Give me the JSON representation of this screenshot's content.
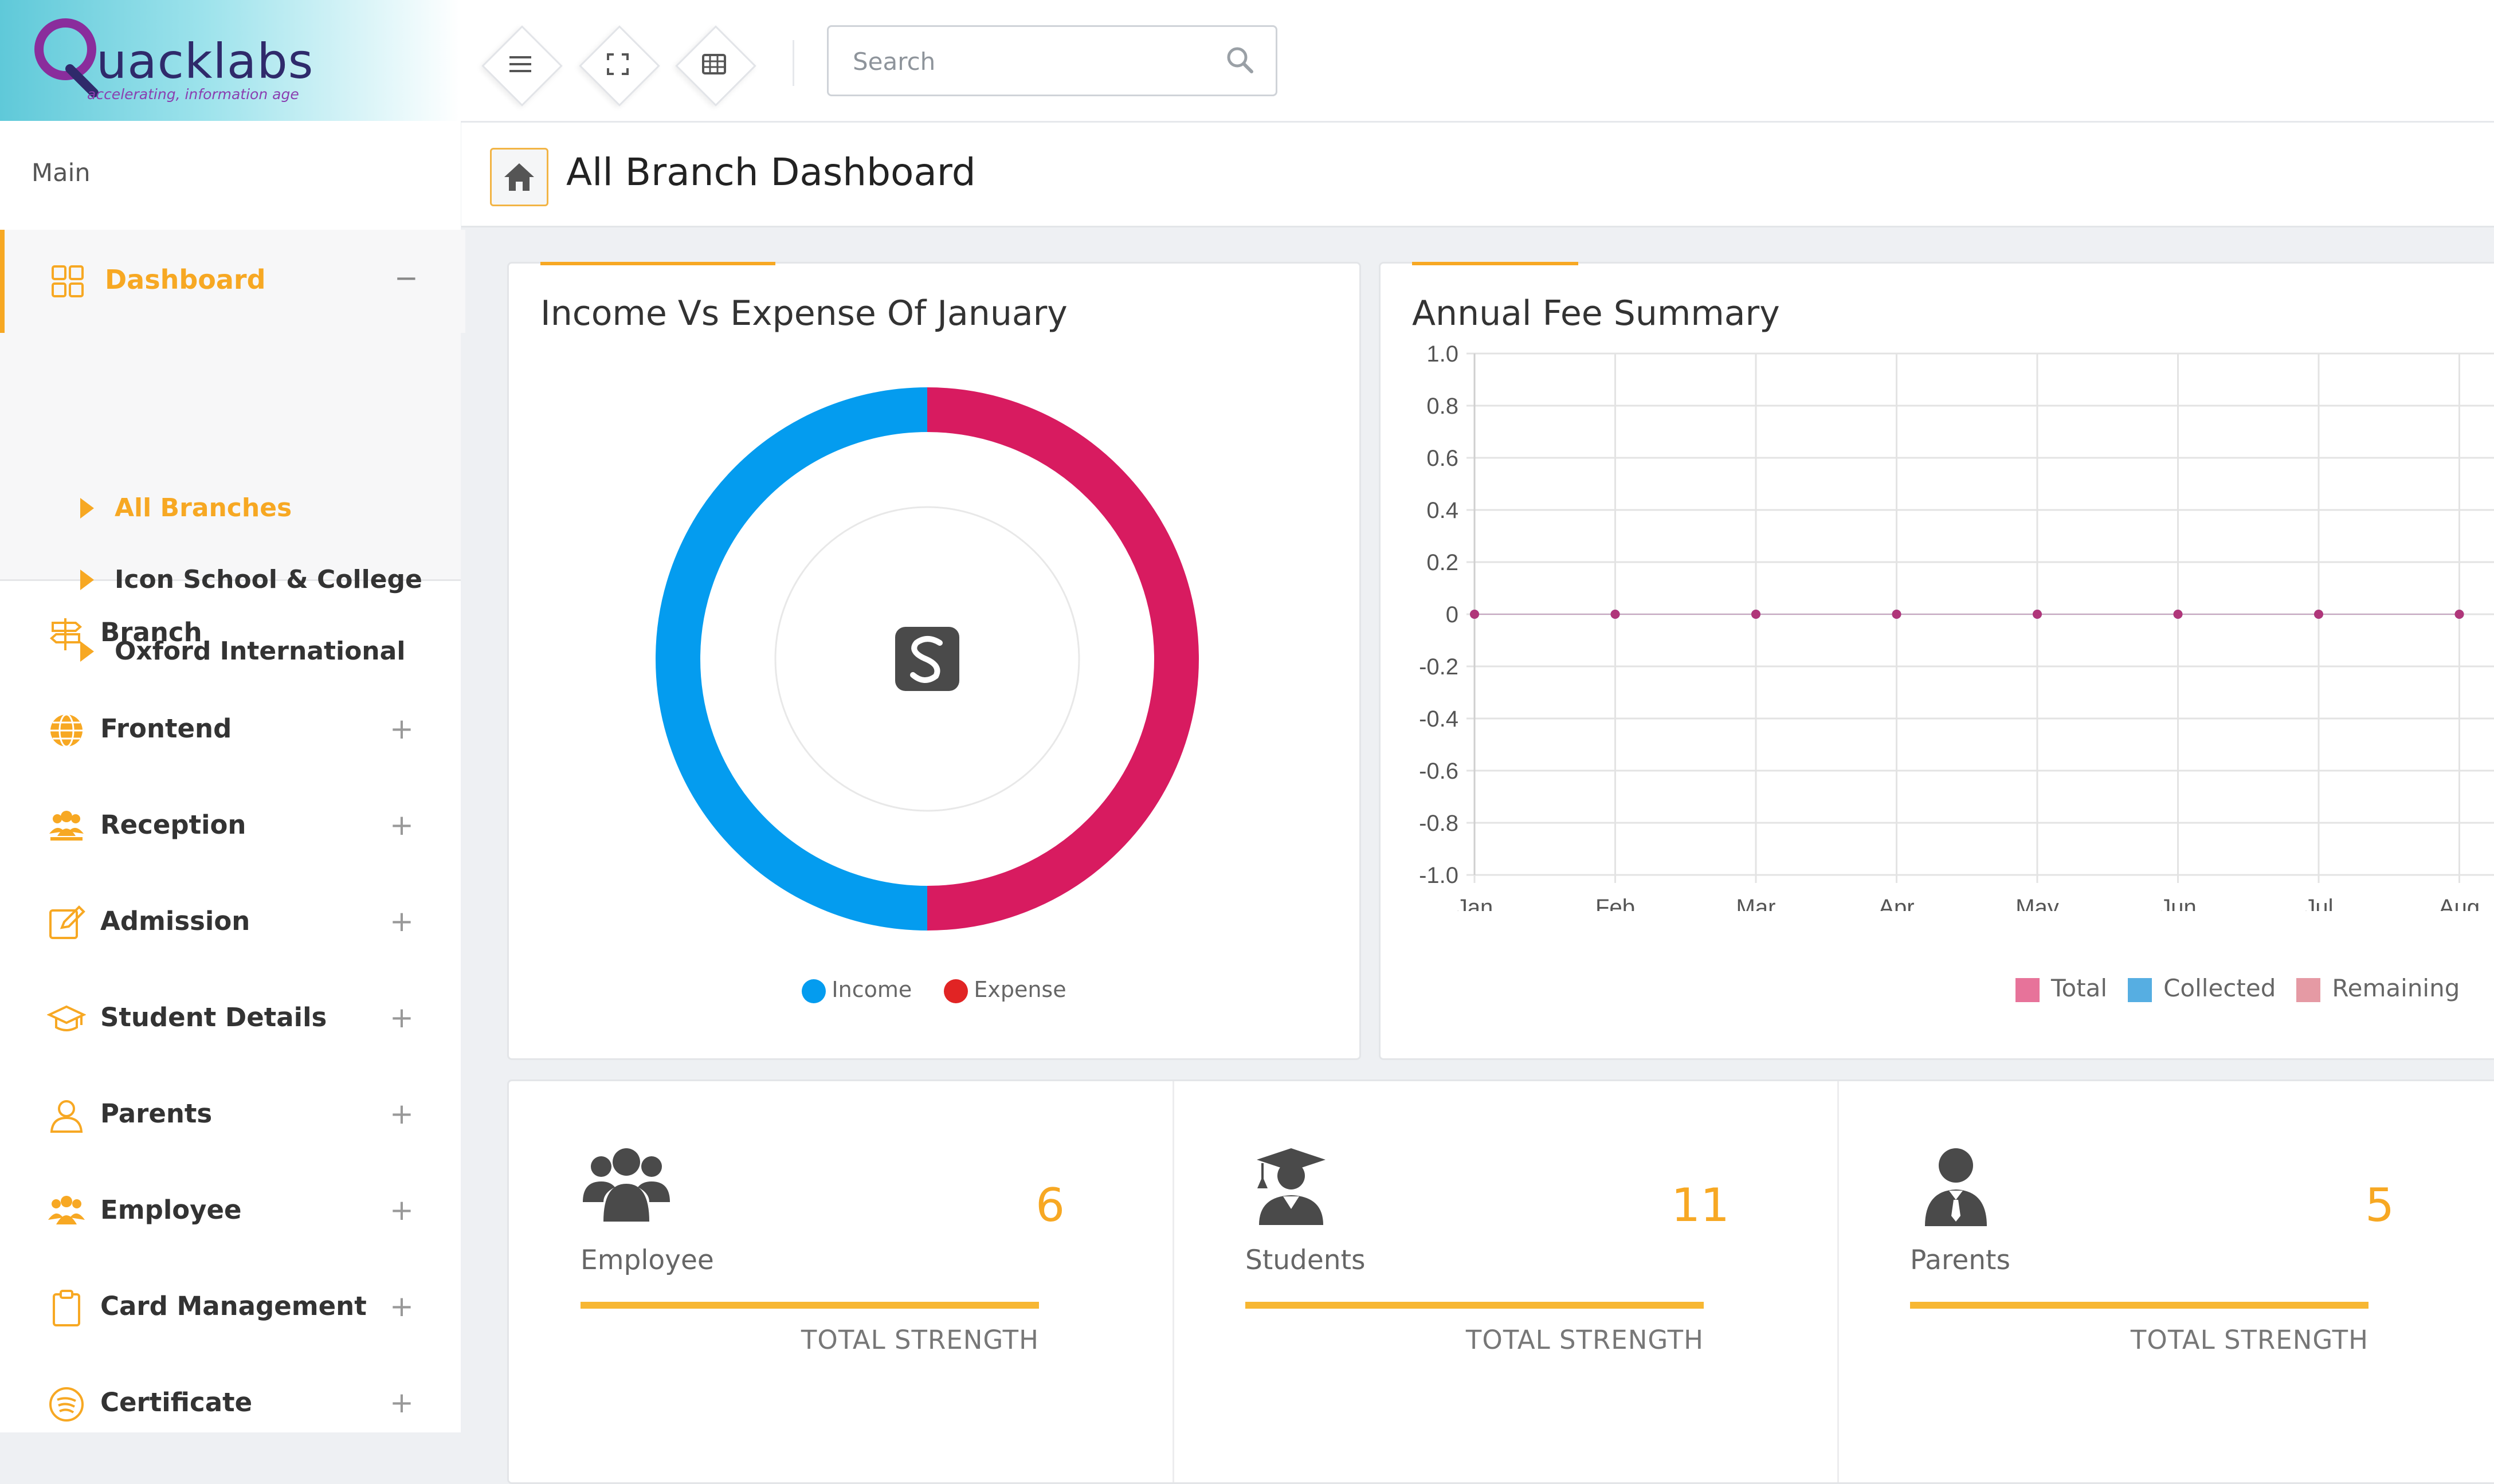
{
  "brand": {
    "name": "uacklabs",
    "tagline": "accelerating, information age"
  },
  "topbar": {
    "menu_icon": "menu-icon",
    "fullscreen_icon": "fullscreen-icon",
    "grid_icon": "grid-icon",
    "search": {
      "placeholder": "Search",
      "value": ""
    }
  },
  "sidebar": {
    "section_label": "Main",
    "dashboard": {
      "label": "Dashboard",
      "toggle": "−",
      "submenu": [
        "All Branches",
        "Icon School & College",
        "Oxford International"
      ]
    },
    "items": [
      {
        "label": "Branch",
        "icon": "branch-signpost-icon",
        "expand": ""
      },
      {
        "label": "Frontend",
        "icon": "globe-icon",
        "expand": "+"
      },
      {
        "label": "Reception",
        "icon": "people-group-icon",
        "expand": "+"
      },
      {
        "label": "Admission",
        "icon": "edit-form-icon",
        "expand": "+"
      },
      {
        "label": "Student Details",
        "icon": "graduation-cap-icon",
        "expand": "+"
      },
      {
        "label": "Parents",
        "icon": "user-outline-icon",
        "expand": "+"
      },
      {
        "label": "Employee",
        "icon": "employees-icon",
        "expand": "+"
      },
      {
        "label": "Card Management",
        "icon": "clipboard-icon",
        "expand": "+"
      },
      {
        "label": "Certificate",
        "icon": "certificate-icon",
        "expand": "+"
      }
    ]
  },
  "header": {
    "title": "All Branch Dashboard"
  },
  "income_card": {
    "title": "Income Vs Expense Of January",
    "legend": [
      "Income",
      "Expense"
    ]
  },
  "fee_card": {
    "title": "Annual Fee Summary"
  },
  "stats": [
    {
      "label": "Employee",
      "count": "6",
      "sub": "TOTAL STRENGTH",
      "icon": "employees-icon"
    },
    {
      "label": "Students",
      "count": "11",
      "sub": "TOTAL STRENGTH",
      "icon": "student-graduate-icon"
    },
    {
      "label": "Parents",
      "count": "5",
      "sub": "TOTAL STRENGTH",
      "icon": "parent-user-icon"
    }
  ],
  "colors": {
    "accent": "#f7a823",
    "income": "#049cef",
    "expense": "#d81b60",
    "total": "#e7739a",
    "collected": "#56aee2",
    "remaining": "#e59aa4"
  },
  "chart_data": [
    {
      "type": "pie",
      "title": "Income Vs Expense Of January",
      "categories": [
        "Income",
        "Expense"
      ],
      "values": [
        1,
        1
      ]
    },
    {
      "type": "line",
      "title": "Annual Fee Summary",
      "x": [
        "Jan",
        "Feb",
        "Mar",
        "Apr",
        "May",
        "Jun",
        "Jul",
        "Aug"
      ],
      "series": [
        {
          "name": "Total",
          "values": [
            0,
            0,
            0,
            0,
            0,
            0,
            0,
            0
          ]
        },
        {
          "name": "Collected",
          "values": [
            0,
            0,
            0,
            0,
            0,
            0,
            0,
            0
          ]
        },
        {
          "name": "Remaining",
          "values": [
            0,
            0,
            0,
            0,
            0,
            0,
            0,
            0
          ]
        }
      ],
      "ylim": [
        -1.0,
        1.0
      ],
      "yticks": [
        "1.0",
        "0.8",
        "0.6",
        "0.4",
        "0.2",
        "0",
        "-0.2",
        "-0.4",
        "-0.6",
        "-0.8",
        "-1.0"
      ],
      "grid": true,
      "legend": "bottom-right"
    }
  ]
}
